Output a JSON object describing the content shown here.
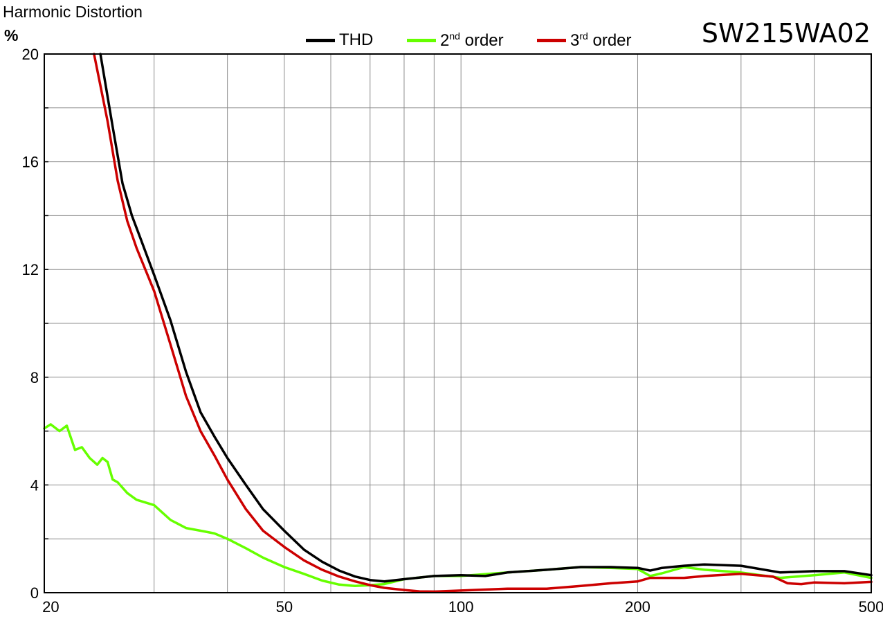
{
  "ylabel": "Harmonic Distortion",
  "yunit": "%",
  "model": "SW215WA02",
  "legend": [
    {
      "name": "THD",
      "color": "#000000"
    },
    {
      "pre": "2",
      "sup": "nd",
      "post": " order",
      "color": "#66ff00"
    },
    {
      "pre": "3",
      "sup": "rd",
      "post": " order",
      "color": "#cc0000"
    }
  ],
  "chart_data": {
    "type": "line",
    "title": "",
    "xlabel": "",
    "ylabel": "Harmonic Distortion %",
    "xscale": "log",
    "xlim": [
      19.5,
      500
    ],
    "ylim": [
      0,
      20
    ],
    "xticks": [
      20,
      50,
      100,
      200,
      500
    ],
    "xtick_labels": [
      "20",
      "50",
      "100",
      "200",
      "500"
    ],
    "yticks": [
      0,
      4,
      8,
      12,
      16,
      20
    ],
    "ytick_labels": [
      "0",
      "4",
      "8",
      "12",
      "16",
      "20"
    ],
    "grid": true,
    "legend_position": "top-center",
    "series": [
      {
        "name": "THD",
        "color": "#000000",
        "x": [
          24.3,
          25.5,
          26.5,
          27.5,
          28.5,
          30,
          32,
          34,
          36,
          38,
          40,
          43,
          46,
          50,
          54,
          58,
          62,
          66,
          70,
          74,
          80,
          90,
          100,
          110,
          120,
          140,
          160,
          180,
          200,
          210,
          220,
          240,
          260,
          300,
          350,
          400,
          450,
          500
        ],
        "y": [
          20,
          17.3,
          15.2,
          14.0,
          13.1,
          11.8,
          10.1,
          8.2,
          6.7,
          5.8,
          5.0,
          4.0,
          3.1,
          2.3,
          1.6,
          1.15,
          0.82,
          0.6,
          0.47,
          0.42,
          0.5,
          0.62,
          0.65,
          0.62,
          0.75,
          0.85,
          0.95,
          0.95,
          0.92,
          0.82,
          0.92,
          1.0,
          1.05,
          1.0,
          0.75,
          0.8,
          0.8,
          0.65
        ]
      },
      {
        "name": "2nd order",
        "color": "#66ff00",
        "x": [
          19.5,
          20,
          20.7,
          21.3,
          22,
          22.6,
          23.3,
          24,
          24.5,
          25,
          25.5,
          26,
          27,
          28,
          30,
          32,
          34,
          36,
          38,
          40,
          43,
          46,
          50,
          54,
          58,
          62,
          66,
          70,
          74,
          80,
          90,
          100,
          120,
          140,
          160,
          180,
          200,
          210,
          220,
          240,
          260,
          300,
          350,
          400,
          450,
          500
        ],
        "y": [
          6.1,
          6.25,
          6.0,
          6.2,
          5.3,
          5.4,
          5.0,
          4.75,
          5.0,
          4.85,
          4.2,
          4.1,
          3.7,
          3.45,
          3.25,
          2.7,
          2.4,
          2.3,
          2.2,
          2.0,
          1.65,
          1.3,
          0.95,
          0.7,
          0.45,
          0.3,
          0.25,
          0.28,
          0.32,
          0.5,
          0.62,
          0.62,
          0.75,
          0.85,
          0.95,
          0.92,
          0.88,
          0.62,
          0.72,
          0.95,
          0.85,
          0.75,
          0.55,
          0.65,
          0.75,
          0.55
        ]
      },
      {
        "name": "3rd order",
        "color": "#cc0000",
        "x": [
          23.7,
          25,
          26,
          27,
          28,
          30,
          32,
          34,
          36,
          38,
          40,
          43,
          46,
          50,
          54,
          58,
          62,
          66,
          70,
          74,
          80,
          85,
          90,
          100,
          120,
          140,
          160,
          180,
          200,
          210,
          220,
          240,
          260,
          300,
          340,
          360,
          380,
          400,
          450,
          500
        ],
        "y": [
          20,
          17.5,
          15.3,
          13.8,
          12.8,
          11.2,
          9.2,
          7.3,
          6.0,
          5.1,
          4.2,
          3.1,
          2.3,
          1.7,
          1.2,
          0.85,
          0.6,
          0.42,
          0.28,
          0.18,
          0.1,
          0.05,
          0.04,
          0.08,
          0.15,
          0.15,
          0.25,
          0.35,
          0.42,
          0.55,
          0.55,
          0.55,
          0.62,
          0.7,
          0.6,
          0.35,
          0.32,
          0.38,
          0.35,
          0.4
        ]
      }
    ]
  }
}
